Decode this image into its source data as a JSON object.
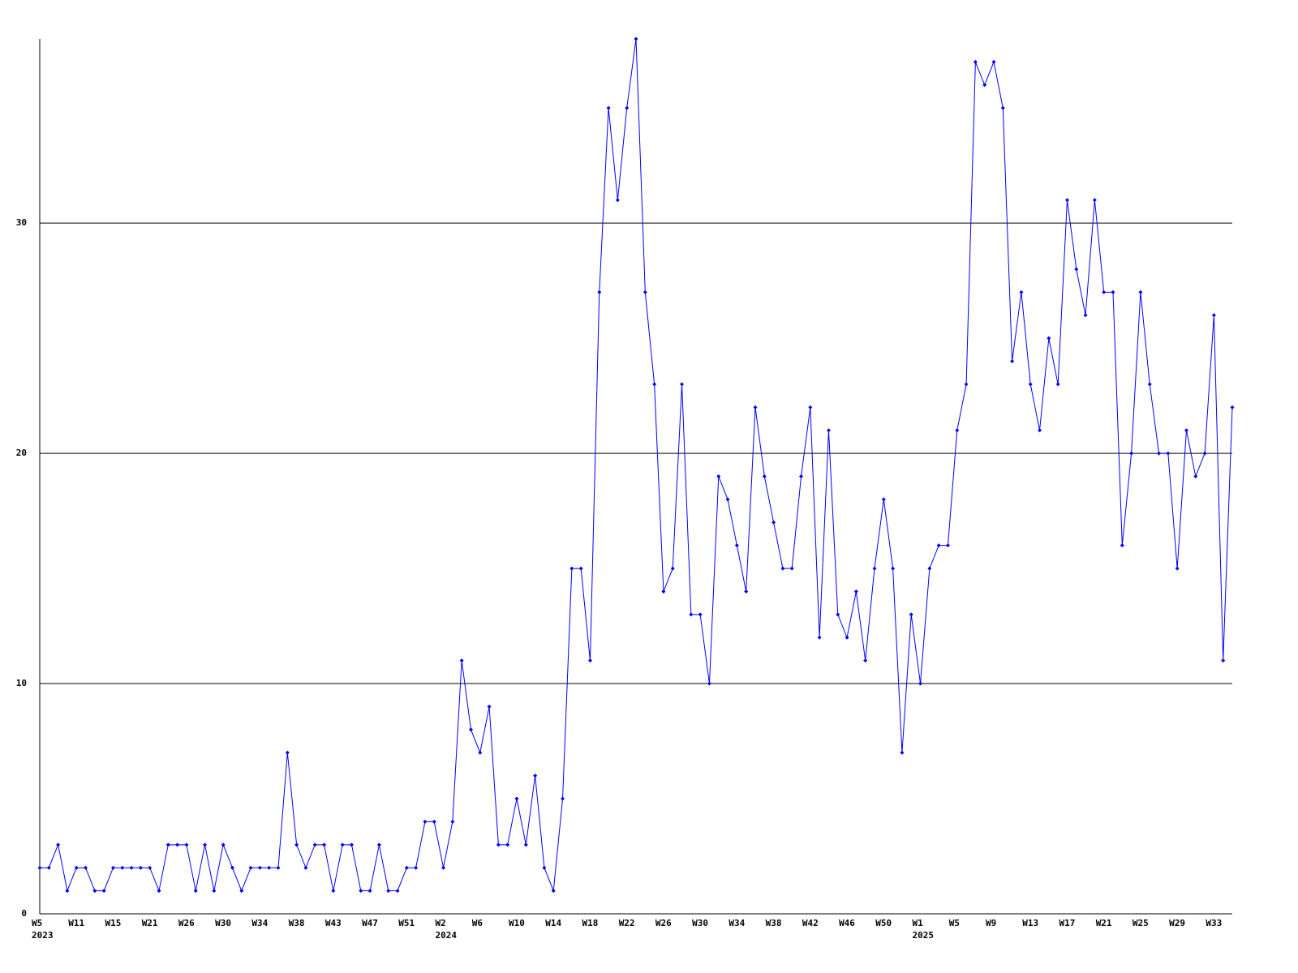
{
  "chart_data": {
    "type": "line",
    "categories": [
      "W5",
      null,
      null,
      null,
      "W11",
      null,
      null,
      null,
      "W15",
      null,
      null,
      null,
      "W21",
      null,
      null,
      null,
      "W26",
      null,
      null,
      null,
      "W30",
      null,
      null,
      null,
      "W34",
      null,
      null,
      null,
      "W38",
      null,
      null,
      null,
      "W43",
      null,
      null,
      null,
      "W47",
      null,
      null,
      null,
      "W51",
      null,
      null,
      null,
      "W2",
      null,
      null,
      null,
      "W6",
      null,
      null,
      null,
      "W10",
      null,
      null,
      null,
      "W14",
      null,
      null,
      null,
      "W18",
      null,
      null,
      null,
      "W22",
      null,
      null,
      null,
      "W26",
      null,
      null,
      null,
      "W30",
      null,
      null,
      null,
      "W34",
      null,
      null,
      null,
      "W38",
      null,
      null,
      null,
      "W42",
      null,
      null,
      null,
      "W46",
      null,
      null,
      null,
      "W50",
      null,
      null,
      null,
      "W1",
      null,
      null,
      null,
      "W5",
      null,
      null,
      null,
      "W9",
      null,
      null,
      null,
      "W13",
      null,
      null,
      null,
      "W17",
      null,
      null,
      null,
      "W21",
      null,
      null,
      null,
      "W25",
      null,
      null,
      null,
      "W29",
      null,
      null,
      null,
      "W33",
      null,
      null
    ],
    "years": [
      "2023",
      null,
      null,
      null,
      null,
      null,
      null,
      null,
      null,
      null,
      null,
      null,
      null,
      null,
      null,
      null,
      null,
      null,
      null,
      null,
      null,
      null,
      null,
      null,
      null,
      null,
      null,
      null,
      null,
      null,
      null,
      null,
      null,
      null,
      null,
      null,
      null,
      null,
      null,
      null,
      null,
      null,
      null,
      null,
      "2024",
      null,
      null,
      null,
      null,
      null,
      null,
      null,
      null,
      null,
      null,
      null,
      null,
      null,
      null,
      null,
      null,
      null,
      null,
      null,
      null,
      null,
      null,
      null,
      null,
      null,
      null,
      null,
      null,
      null,
      null,
      null,
      null,
      null,
      null,
      null,
      null,
      null,
      null,
      null,
      null,
      null,
      null,
      null,
      null,
      null,
      null,
      null,
      null,
      null,
      null,
      null,
      "2025",
      null,
      null,
      null,
      null,
      null,
      null,
      null,
      null,
      null,
      null,
      null,
      null,
      null,
      null,
      null,
      null,
      null,
      null,
      null,
      null,
      null,
      null,
      null,
      null,
      null,
      null,
      null,
      null,
      null,
      null,
      null,
      null,
      null,
      null
    ],
    "series": [
      {
        "color": "#0000ff",
        "values": [
          2,
          2,
          3,
          1,
          2,
          2,
          1,
          1,
          2,
          2,
          2,
          2,
          2,
          1,
          3,
          3,
          3,
          1,
          3,
          1,
          3,
          2,
          1,
          2,
          2,
          2,
          2,
          7,
          3,
          2,
          3,
          3,
          1,
          3,
          3,
          1,
          1,
          3,
          1,
          1,
          2,
          2,
          4,
          4,
          2,
          4,
          11,
          8,
          7,
          9,
          3,
          3,
          5,
          3,
          6,
          2,
          1,
          5,
          15,
          15,
          11,
          27,
          35,
          31,
          35,
          38,
          27,
          23,
          14,
          15,
          23,
          13,
          13,
          10,
          19,
          18,
          16,
          14,
          22,
          19,
          17,
          15,
          15,
          19,
          22,
          12,
          21,
          13,
          12,
          14,
          11,
          15,
          18,
          15,
          7,
          13,
          10,
          15,
          16,
          16,
          21,
          23,
          37,
          36,
          37,
          35,
          24,
          27,
          23,
          21,
          25,
          23,
          31,
          28,
          26,
          31,
          27,
          27,
          16,
          20,
          27,
          23,
          20,
          20,
          15,
          21,
          19,
          20,
          26,
          11,
          22
        ]
      }
    ],
    "ylim": [
      0,
      38
    ],
    "yticks": [
      0,
      10,
      20,
      30
    ],
    "grid": true
  }
}
